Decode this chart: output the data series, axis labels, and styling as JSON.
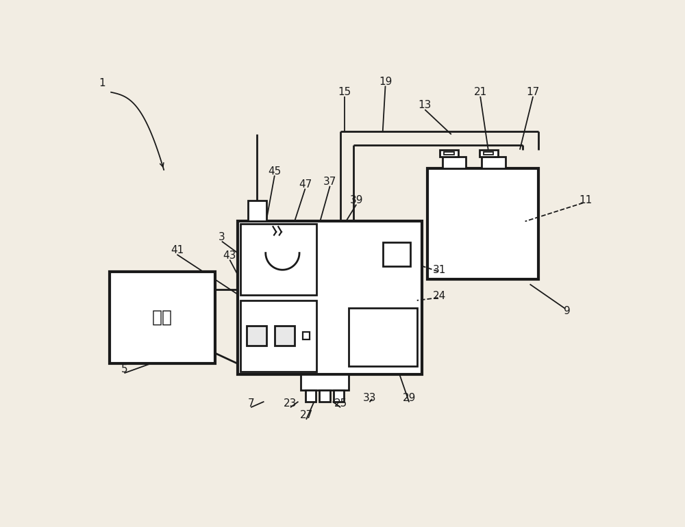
{
  "bg_color": "#f2ede3",
  "line_color": "#1a1a1a",
  "lw_thick": 3.0,
  "lw_med": 2.0,
  "lw_thin": 1.3,
  "fs_label": 11
}
